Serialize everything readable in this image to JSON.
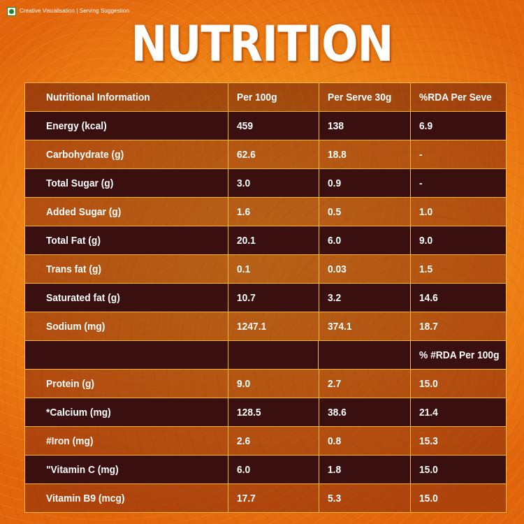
{
  "disclaimer": "Creative Visualisation | Serving Suggestion",
  "title": "NUTRITION",
  "table": {
    "headers": [
      "Nutritional Information",
      "Per 100g",
      "Per Serve 30g",
      "%RDA Per Seve"
    ],
    "rows": [
      [
        "Energy (kcal)",
        "459",
        "138",
        "6.9"
      ],
      [
        "Carbohydrate (g)",
        "62.6",
        "18.8",
        "-"
      ],
      [
        "Total Sugar (g)",
        "3.0",
        "0.9",
        "-"
      ],
      [
        "Added Sugar (g)",
        "1.6",
        "0.5",
        "1.0"
      ],
      [
        "Total Fat (g)",
        "20.1",
        "6.0",
        "9.0"
      ],
      [
        "Trans fat (g)",
        "0.1",
        "0.03",
        "1.5"
      ],
      [
        "Saturated fat (g)",
        "10.7",
        "3.2",
        "14.6"
      ],
      [
        "Sodium (mg)",
        "1247.1",
        "374.1",
        "18.7"
      ],
      [
        "",
        "",
        "",
        "% #RDA Per 100g"
      ],
      [
        "Protein (g)",
        "9.0",
        "2.7",
        "15.0"
      ],
      [
        "*Calcium (mg)",
        "128.5",
        "38.6",
        "21.4"
      ],
      [
        "#Iron (mg)",
        "2.6",
        "0.8",
        "15.3"
      ],
      [
        "\"Vitamin C (mg)",
        "6.0",
        "1.8",
        "15.0"
      ],
      [
        "Vitamin B9 (mcg)",
        "17.7",
        "5.3",
        "15.0"
      ]
    ]
  }
}
